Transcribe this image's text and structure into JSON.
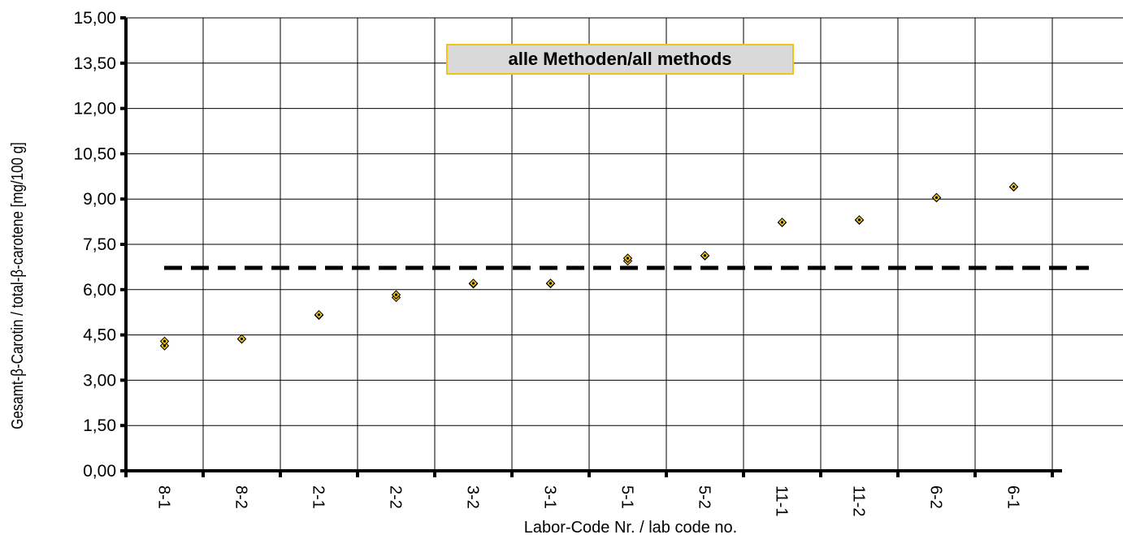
{
  "chart_data": {
    "type": "scatter",
    "title": "alle Methoden/all methods",
    "xlabel": "Labor-Code Nr. / lab code no.",
    "ylabel": "Gesamt-β-Carotin / total-β-carotene [mg/100 g]",
    "categories": [
      "8-1",
      "8-2",
      "2-1",
      "2-2",
      "3-2",
      "3-1",
      "5-1",
      "5-2",
      "11-1",
      "11-2",
      "6-2",
      "6-1"
    ],
    "ylim": [
      0,
      15
    ],
    "yticks": [
      "0,00",
      "1,50",
      "3,00",
      "4,50",
      "6,00",
      "7,50",
      "9,00",
      "10,50",
      "12,00",
      "13,50",
      "15,00"
    ],
    "grid": true,
    "series": [
      {
        "values": [
          [
            4.14,
            4.29
          ],
          [
            4.36,
            4.37
          ],
          [
            5.15,
            5.17
          ],
          [
            5.74,
            5.83
          ],
          [
            6.19,
            6.21
          ],
          [
            6.2,
            6.21
          ],
          [
            6.95,
            7.04
          ],
          [
            7.12,
            7.13
          ],
          [
            8.22,
            8.23
          ],
          [
            8.3,
            8.31
          ],
          [
            9.04,
            9.05
          ],
          [
            9.4,
            9.41
          ]
        ]
      }
    ],
    "reference_line": {
      "value": 6.72,
      "style": "dashed"
    },
    "colors": {
      "marker_fill": "#f0c419",
      "marker_center": "#000000",
      "axis": "#000000",
      "grid": "#000000"
    }
  }
}
